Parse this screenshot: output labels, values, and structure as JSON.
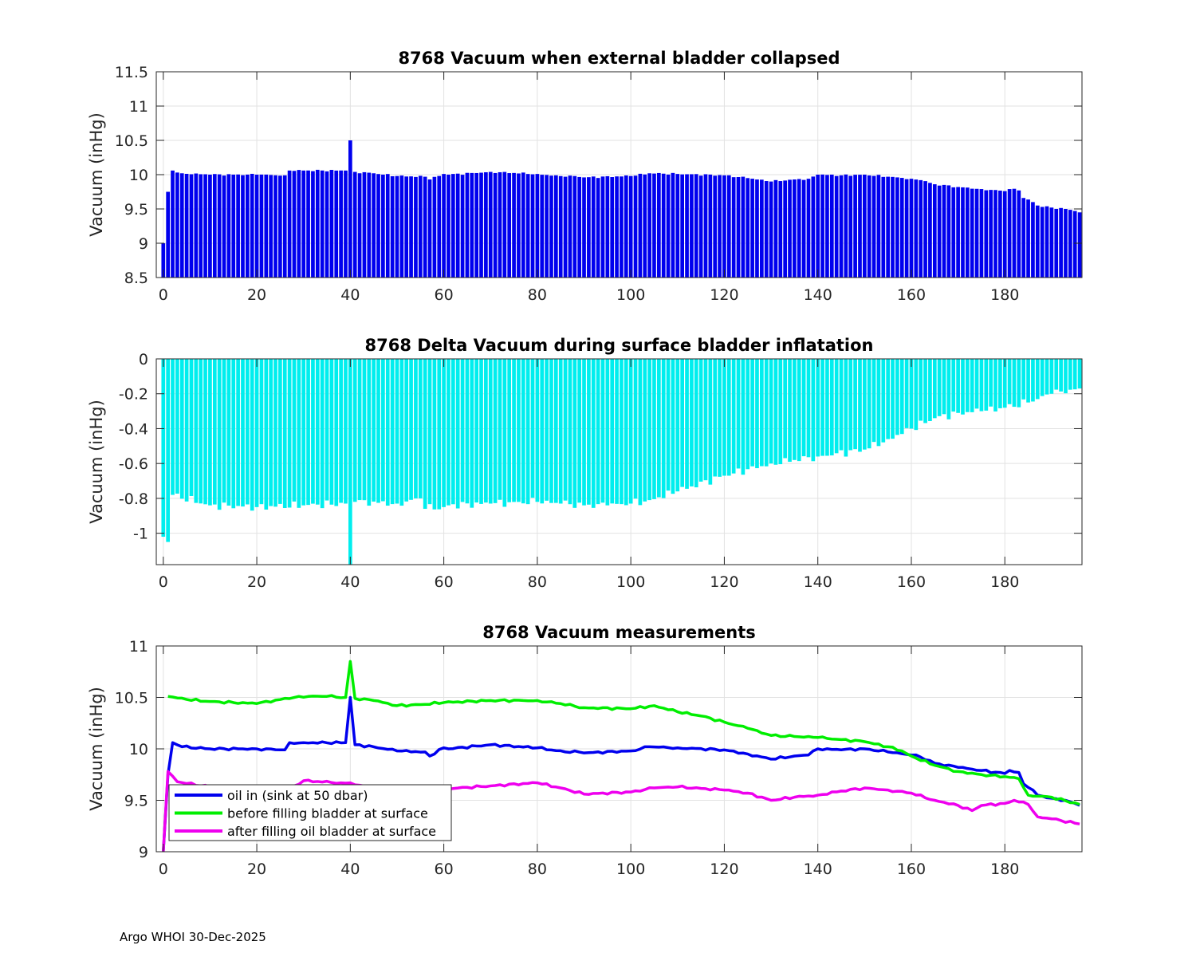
{
  "footer": "Argo WHOI 30-Dec-2025",
  "colors": {
    "bar1": "#0000ee",
    "bar2": "#00eeee",
    "oil_in": "#0000ee",
    "before": "#00ee00",
    "after": "#ee00ee"
  },
  "chart_data": [
    {
      "type": "bar",
      "title": "8768 Vacuum when external bladder collapsed",
      "xlabel": "",
      "ylabel": "Vacuum (inHg)",
      "xlim": [
        -1.5,
        196.5
      ],
      "ylim": [
        8.5,
        11.5
      ],
      "xticks": [
        "0",
        "20",
        "40",
        "60",
        "80",
        "100",
        "120",
        "140",
        "160",
        "180"
      ],
      "yticks": [
        "8.5",
        "9",
        "9.5",
        "10",
        "10.5",
        "11",
        "11.5"
      ],
      "grid": true,
      "keypoints_x": [
        0,
        1,
        2,
        4,
        10,
        20,
        26,
        27,
        30,
        39,
        40,
        41,
        45,
        50,
        56,
        57,
        60,
        61,
        70,
        80,
        86,
        88,
        90,
        100,
        104,
        110,
        120,
        125,
        130,
        135,
        138,
        140,
        145,
        150,
        155,
        160,
        162,
        165,
        170,
        175,
        180,
        181,
        183,
        184,
        186,
        187,
        190,
        193,
        195,
        196
      ],
      "keypoints_y": [
        9.0,
        9.75,
        10.06,
        10.02,
        10.0,
        10.0,
        9.99,
        10.06,
        10.06,
        10.06,
        10.5,
        10.04,
        10.02,
        9.98,
        9.97,
        9.93,
        10.01,
        10.0,
        10.04,
        10.01,
        9.97,
        9.98,
        9.96,
        9.98,
        10.02,
        10.01,
        9.99,
        9.95,
        9.9,
        9.93,
        9.94,
        10.0,
        9.99,
        10.0,
        9.97,
        9.94,
        9.92,
        9.86,
        9.82,
        9.79,
        9.76,
        9.79,
        9.77,
        9.66,
        9.6,
        9.55,
        9.52,
        9.5,
        9.47,
        9.45
      ]
    },
    {
      "type": "bar",
      "title": "8768 Delta Vacuum during surface bladder inflatation",
      "xlabel": "",
      "ylabel": "Vacuum (inHg)",
      "xlim": [
        -1.5,
        196.5
      ],
      "ylim": [
        -1.18,
        0
      ],
      "xticks": [
        "0",
        "20",
        "40",
        "60",
        "80",
        "100",
        "120",
        "140",
        "160",
        "180"
      ],
      "yticks": [
        "-1",
        "-0.8",
        "-0.6",
        "-0.4",
        "-0.2",
        "0"
      ],
      "grid": true,
      "keypoints_x": [
        0,
        1,
        2,
        10,
        20,
        30,
        39,
        40,
        41,
        50,
        55,
        56,
        60,
        61,
        70,
        80,
        85,
        90,
        95,
        100,
        104,
        110,
        120,
        130,
        140,
        150,
        155,
        160,
        165,
        170,
        175,
        180,
        185,
        190,
        196
      ],
      "keypoints_y": [
        -1.02,
        -1.05,
        -0.78,
        -0.84,
        -0.85,
        -0.84,
        -0.83,
        -1.18,
        -0.82,
        -0.83,
        -0.8,
        -0.86,
        -0.85,
        -0.84,
        -0.83,
        -0.82,
        -0.83,
        -0.84,
        -0.84,
        -0.83,
        -0.81,
        -0.76,
        -0.67,
        -0.6,
        -0.56,
        -0.52,
        -0.46,
        -0.4,
        -0.34,
        -0.31,
        -0.3,
        -0.28,
        -0.25,
        -0.2,
        -0.17
      ]
    },
    {
      "type": "line",
      "title": "8768 Vacuum measurements",
      "xlabel": "",
      "ylabel": "Vacuum (inHg)",
      "xlim": [
        -1.5,
        196.5
      ],
      "ylim": [
        9,
        11
      ],
      "xticks": [
        "0",
        "20",
        "40",
        "60",
        "80",
        "100",
        "120",
        "140",
        "160",
        "180"
      ],
      "yticks": [
        "9",
        "9.5",
        "10",
        "10.5",
        "11"
      ],
      "grid": true,
      "legend": "bottom-left",
      "series": [
        {
          "name": "oil in (sink at 50 dbar)",
          "color_key": "oil_in",
          "keypoints_x": [
            0,
            1,
            2,
            4,
            10,
            20,
            26,
            27,
            30,
            39,
            40,
            41,
            45,
            50,
            56,
            57,
            60,
            61,
            70,
            80,
            86,
            88,
            90,
            100,
            104,
            110,
            120,
            125,
            130,
            135,
            138,
            140,
            145,
            150,
            155,
            160,
            162,
            165,
            170,
            175,
            180,
            181,
            183,
            184,
            186,
            187,
            190,
            193,
            195,
            196
          ],
          "keypoints_y": [
            9.0,
            9.75,
            10.06,
            10.02,
            10.0,
            10.0,
            9.99,
            10.06,
            10.06,
            10.06,
            10.5,
            10.04,
            10.02,
            9.98,
            9.97,
            9.93,
            10.01,
            10.0,
            10.04,
            10.01,
            9.97,
            9.98,
            9.96,
            9.98,
            10.02,
            10.01,
            9.99,
            9.95,
            9.9,
            9.93,
            9.94,
            10.0,
            9.99,
            10.0,
            9.97,
            9.94,
            9.92,
            9.86,
            9.82,
            9.79,
            9.76,
            9.79,
            9.77,
            9.66,
            9.6,
            9.55,
            9.52,
            9.5,
            9.47,
            9.45
          ]
        },
        {
          "name": "before filling bladder at surface",
          "color_key": "before",
          "keypoints_x": [
            1,
            5,
            10,
            20,
            29,
            35,
            39,
            40,
            41,
            45,
            50,
            55,
            60,
            70,
            80,
            85,
            90,
            100,
            105,
            110,
            115,
            120,
            125,
            130,
            135,
            140,
            145,
            150,
            155,
            158,
            160,
            165,
            170,
            175,
            180,
            183,
            185,
            190,
            196
          ],
          "keypoints_y": [
            10.51,
            10.48,
            10.46,
            10.44,
            10.51,
            10.51,
            10.5,
            10.85,
            10.49,
            10.47,
            10.42,
            10.43,
            10.45,
            10.47,
            10.47,
            10.44,
            10.4,
            10.39,
            10.42,
            10.36,
            10.32,
            10.26,
            10.2,
            10.13,
            10.12,
            10.11,
            10.09,
            10.07,
            10.02,
            9.98,
            9.93,
            9.84,
            9.78,
            9.75,
            9.73,
            9.71,
            9.55,
            9.53,
            9.46
          ]
        },
        {
          "name": "after filling oil bladder at surface",
          "color_key": "after",
          "keypoints_x": [
            0,
            1,
            3,
            10,
            20,
            28,
            30,
            38,
            40,
            41,
            45,
            50,
            55,
            60,
            70,
            80,
            85,
            90,
            100,
            105,
            110,
            120,
            125,
            130,
            135,
            140,
            145,
            150,
            155,
            160,
            165,
            170,
            173,
            175,
            180,
            182,
            185,
            187,
            190,
            196
          ],
          "keypoints_y": [
            9.0,
            9.78,
            9.68,
            9.63,
            9.62,
            9.64,
            9.69,
            9.67,
            9.67,
            9.65,
            9.62,
            9.6,
            9.6,
            9.61,
            9.64,
            9.67,
            9.62,
            9.56,
            9.58,
            9.62,
            9.63,
            9.6,
            9.57,
            9.5,
            9.53,
            9.55,
            9.59,
            9.62,
            9.6,
            9.57,
            9.5,
            9.45,
            9.4,
            9.45,
            9.47,
            9.5,
            9.46,
            9.34,
            9.32,
            9.27
          ]
        }
      ]
    }
  ]
}
